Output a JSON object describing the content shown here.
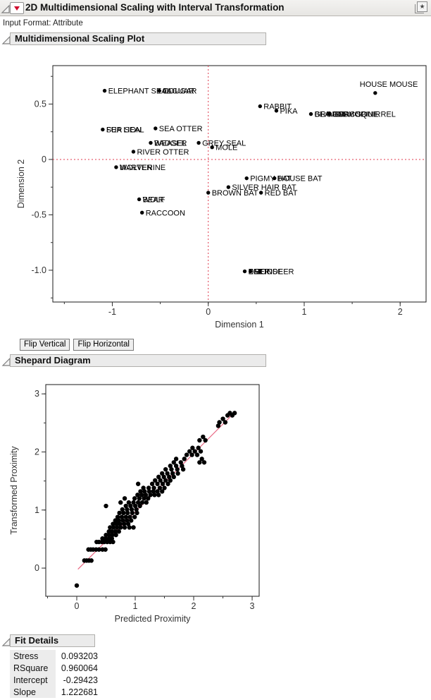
{
  "window": {
    "title": "2D Multidimensional Scaling with Interval Transformation",
    "input_format": "Input Format: Attribute"
  },
  "icons": {
    "red_triangle_menu": "red-triangle-down",
    "bookmark_star": "★",
    "disclosure": "open-outline-triangle"
  },
  "sections": {
    "mds": "Multidimensional Scaling Plot",
    "shepard": "Shepard Diagram",
    "fit": "Fit Details"
  },
  "buttons": {
    "flip_vertical": "Flip Vertical",
    "flip_horizontal": "Flip Horizontal"
  },
  "fit_details": {
    "rows": [
      {
        "label": "Stress",
        "value": "0.093203"
      },
      {
        "label": "RSquare",
        "value": "0.960064"
      },
      {
        "label": "Intercept",
        "value": "-0.29423"
      },
      {
        "label": "Slope",
        "value": "1.222681"
      }
    ]
  },
  "colors": {
    "reference_line": "#e03a4e",
    "fit_line": "#e96b85",
    "marker": "#000000",
    "header_bg": "#ebebeb"
  },
  "chart_data": [
    {
      "type": "scatter",
      "name": "mds-configuration-plot",
      "xlabel": "Dimension 1",
      "ylabel": "Dimension 2",
      "xlim": [
        -1.62,
        2.27
      ],
      "ylim": [
        -1.287,
        0.847
      ],
      "xticks": [
        {
          "v": -1,
          "label": "-1"
        },
        {
          "v": 0,
          "label": "0"
        },
        {
          "v": 1,
          "label": "1"
        },
        {
          "v": 2,
          "label": "2"
        }
      ],
      "yticks": [
        {
          "v": 0.5,
          "label": "0.5"
        },
        {
          "v": 0,
          "label": "0"
        },
        {
          "v": -0.5,
          "label": "-0.5"
        },
        {
          "v": -1,
          "label": "-1.0"
        }
      ],
      "xminor": 0.5,
      "yminor": 0.25,
      "reference_lines": {
        "x": 0,
        "y": 0
      },
      "points": [
        {
          "x": -1.08,
          "y": 0.62,
          "labels": [
            "ELEPHANT SEAL"
          ]
        },
        {
          "x": -0.51,
          "y": 0.62,
          "labels": [
            "JAGUAR",
            "COUGAR"
          ]
        },
        {
          "x": 1.74,
          "y": 0.6,
          "labels": [
            "HOUSE MOUSE"
          ],
          "label_pos": "above"
        },
        {
          "x": 0.54,
          "y": 0.48,
          "labels": [
            "RABBIT"
          ]
        },
        {
          "x": 0.71,
          "y": 0.44,
          "labels": [
            "PIKA"
          ]
        },
        {
          "x": 1.07,
          "y": 0.41,
          "labels": [
            "BEAVER",
            "GROUNDHOG"
          ]
        },
        {
          "x": 1.26,
          "y": 0.41,
          "labels": [
            "PORCUPINE",
            "GRAY SQUIRREL"
          ]
        },
        {
          "x": -1.1,
          "y": 0.27,
          "labels": [
            "FUR SEAL",
            "SEA LION"
          ]
        },
        {
          "x": -0.55,
          "y": 0.28,
          "labels": [
            "SEA OTTER"
          ]
        },
        {
          "x": -0.6,
          "y": 0.15,
          "labels": [
            "WEASEL",
            "BADGER"
          ]
        },
        {
          "x": -0.1,
          "y": 0.15,
          "labels": [
            "GREY SEAL"
          ]
        },
        {
          "x": 0.04,
          "y": 0.11,
          "labels": [
            "MOLE"
          ]
        },
        {
          "x": -0.78,
          "y": 0.07,
          "labels": [
            "RIVER OTTER"
          ]
        },
        {
          "x": -0.96,
          "y": -0.07,
          "labels": [
            "MARTEN",
            "WOLVERINE"
          ]
        },
        {
          "x": -0.72,
          "y": -0.36,
          "labels": [
            "WOLF",
            "BEAR"
          ]
        },
        {
          "x": -0.69,
          "y": -0.48,
          "labels": [
            "RACCOON"
          ]
        },
        {
          "x": 0.4,
          "y": -0.17,
          "labels": [
            "PIGMY BAT"
          ]
        },
        {
          "x": 0.69,
          "y": -0.17,
          "labels": [
            "HOUSE BAT"
          ]
        },
        {
          "x": 0.21,
          "y": -0.25,
          "labels": [
            "SILVER HAIR BAT"
          ]
        },
        {
          "x": 0.0,
          "y": -0.3,
          "labels": [
            "BROWN BAT"
          ]
        },
        {
          "x": 0.55,
          "y": -0.3,
          "labels": [
            "RED BAT"
          ]
        },
        {
          "x": 0.38,
          "y": -1.01,
          "labels": [
            "ELK",
            "DEER"
          ]
        },
        {
          "x": 0.44,
          "y": -1.01,
          "labels": [
            "MOOSE",
            "REINDEER"
          ]
        }
      ]
    },
    {
      "type": "scatter",
      "name": "shepard-diagram-plot",
      "xlabel": "Predicted Proximity",
      "ylabel": "Transformed Proximity",
      "xlim": [
        -0.53,
        3.12
      ],
      "ylim": [
        -0.485,
        3.16
      ],
      "xticks": [
        {
          "v": 0,
          "label": "0"
        },
        {
          "v": 1,
          "label": "1"
        },
        {
          "v": 2,
          "label": "2"
        },
        {
          "v": 3,
          "label": "3"
        }
      ],
      "yticks": [
        {
          "v": 0,
          "label": "0"
        },
        {
          "v": 1,
          "label": "1"
        },
        {
          "v": 2,
          "label": "2"
        },
        {
          "v": 3,
          "label": "3"
        }
      ],
      "xminor": 0.5,
      "yminor": 0.5,
      "fit_line": {
        "x1": 0.02,
        "y1": -0.02,
        "x2": 2.72,
        "y2": 2.7
      },
      "points": [
        [
          0.0,
          -0.3
        ],
        [
          0.13,
          0.13
        ],
        [
          0.17,
          0.13
        ],
        [
          0.21,
          0.13
        ],
        [
          0.25,
          0.13
        ],
        [
          0.2,
          0.32
        ],
        [
          0.24,
          0.32
        ],
        [
          0.28,
          0.32
        ],
        [
          0.33,
          0.32
        ],
        [
          0.38,
          0.32
        ],
        [
          0.44,
          0.32
        ],
        [
          0.49,
          0.32
        ],
        [
          0.34,
          0.45
        ],
        [
          0.38,
          0.45
        ],
        [
          0.43,
          0.45
        ],
        [
          0.47,
          0.45
        ],
        [
          0.52,
          0.45
        ],
        [
          0.57,
          0.45
        ],
        [
          0.62,
          0.45
        ],
        [
          0.44,
          0.51
        ],
        [
          0.49,
          0.51
        ],
        [
          0.55,
          0.51
        ],
        [
          0.6,
          0.51
        ],
        [
          0.5,
          0.57
        ],
        [
          0.55,
          0.57
        ],
        [
          0.61,
          0.57
        ],
        [
          0.67,
          0.57
        ],
        [
          0.55,
          0.63
        ],
        [
          0.6,
          0.63
        ],
        [
          0.66,
          0.63
        ],
        [
          0.72,
          0.63
        ],
        [
          0.57,
          0.7
        ],
        [
          0.63,
          0.7
        ],
        [
          0.69,
          0.7
        ],
        [
          0.75,
          0.7
        ],
        [
          0.82,
          0.7
        ],
        [
          0.9,
          0.7
        ],
        [
          0.97,
          0.7
        ],
        [
          0.62,
          0.76
        ],
        [
          0.68,
          0.76
        ],
        [
          0.74,
          0.76
        ],
        [
          0.81,
          0.76
        ],
        [
          0.88,
          0.76
        ],
        [
          0.66,
          0.82
        ],
        [
          0.72,
          0.82
        ],
        [
          0.79,
          0.82
        ],
        [
          0.86,
          0.82
        ],
        [
          0.93,
          0.82
        ],
        [
          0.7,
          0.88
        ],
        [
          0.77,
          0.88
        ],
        [
          0.84,
          0.88
        ],
        [
          0.91,
          0.88
        ],
        [
          0.99,
          0.88
        ],
        [
          0.73,
          0.95
        ],
        [
          0.8,
          0.95
        ],
        [
          0.87,
          0.95
        ],
        [
          0.95,
          0.95
        ],
        [
          1.03,
          0.95
        ],
        [
          0.78,
          1.01
        ],
        [
          0.86,
          1.01
        ],
        [
          0.94,
          1.01
        ],
        [
          1.02,
          1.01
        ],
        [
          0.5,
          1.07
        ],
        [
          0.84,
          1.07
        ],
        [
          0.92,
          1.07
        ],
        [
          1.0,
          1.07
        ],
        [
          1.08,
          1.07
        ],
        [
          0.75,
          1.13
        ],
        [
          0.89,
          1.13
        ],
        [
          0.97,
          1.13
        ],
        [
          1.05,
          1.13
        ],
        [
          1.12,
          1.13
        ],
        [
          1.19,
          1.13
        ],
        [
          0.82,
          1.2
        ],
        [
          0.99,
          1.2
        ],
        [
          1.07,
          1.2
        ],
        [
          1.15,
          1.2
        ],
        [
          1.22,
          1.2
        ],
        [
          1.04,
          1.26
        ],
        [
          1.11,
          1.26
        ],
        [
          1.18,
          1.26
        ],
        [
          1.26,
          1.26
        ],
        [
          1.33,
          1.26
        ],
        [
          1.4,
          1.26
        ],
        [
          1.09,
          1.32
        ],
        [
          1.16,
          1.32
        ],
        [
          1.24,
          1.32
        ],
        [
          1.31,
          1.32
        ],
        [
          1.38,
          1.32
        ],
        [
          1.46,
          1.32
        ],
        [
          1.14,
          1.38
        ],
        [
          1.23,
          1.38
        ],
        [
          1.32,
          1.38
        ],
        [
          1.42,
          1.38
        ],
        [
          1.5,
          1.38
        ],
        [
          1.05,
          1.45
        ],
        [
          1.29,
          1.45
        ],
        [
          1.38,
          1.45
        ],
        [
          1.47,
          1.45
        ],
        [
          1.56,
          1.45
        ],
        [
          1.34,
          1.51
        ],
        [
          1.43,
          1.51
        ],
        [
          1.52,
          1.51
        ],
        [
          1.6,
          1.51
        ],
        [
          1.4,
          1.57
        ],
        [
          1.49,
          1.57
        ],
        [
          1.58,
          1.57
        ],
        [
          1.66,
          1.57
        ],
        [
          1.46,
          1.63
        ],
        [
          1.55,
          1.63
        ],
        [
          1.64,
          1.63
        ],
        [
          1.73,
          1.63
        ],
        [
          1.52,
          1.7
        ],
        [
          1.62,
          1.7
        ],
        [
          1.72,
          1.7
        ],
        [
          1.82,
          1.7
        ],
        [
          1.6,
          1.76
        ],
        [
          1.7,
          1.76
        ],
        [
          1.8,
          1.76
        ],
        [
          1.66,
          1.82
        ],
        [
          1.78,
          1.82
        ],
        [
          2.1,
          1.82
        ],
        [
          2.18,
          1.82
        ],
        [
          1.7,
          1.88
        ],
        [
          1.84,
          1.88
        ],
        [
          2.14,
          1.88
        ],
        [
          1.88,
          1.95
        ],
        [
          1.97,
          1.95
        ],
        [
          2.06,
          1.95
        ],
        [
          1.93,
          2.01
        ],
        [
          2.02,
          2.01
        ],
        [
          2.12,
          2.01
        ],
        [
          1.98,
          2.07
        ],
        [
          2.08,
          2.07
        ],
        [
          2.1,
          2.2
        ],
        [
          2.2,
          2.2
        ],
        [
          2.16,
          2.26
        ],
        [
          2.42,
          2.45
        ],
        [
          2.44,
          2.51
        ],
        [
          2.54,
          2.51
        ],
        [
          2.5,
          2.57
        ],
        [
          2.58,
          2.63
        ],
        [
          2.66,
          2.63
        ],
        [
          2.62,
          2.67
        ],
        [
          2.7,
          2.67
        ]
      ]
    }
  ]
}
